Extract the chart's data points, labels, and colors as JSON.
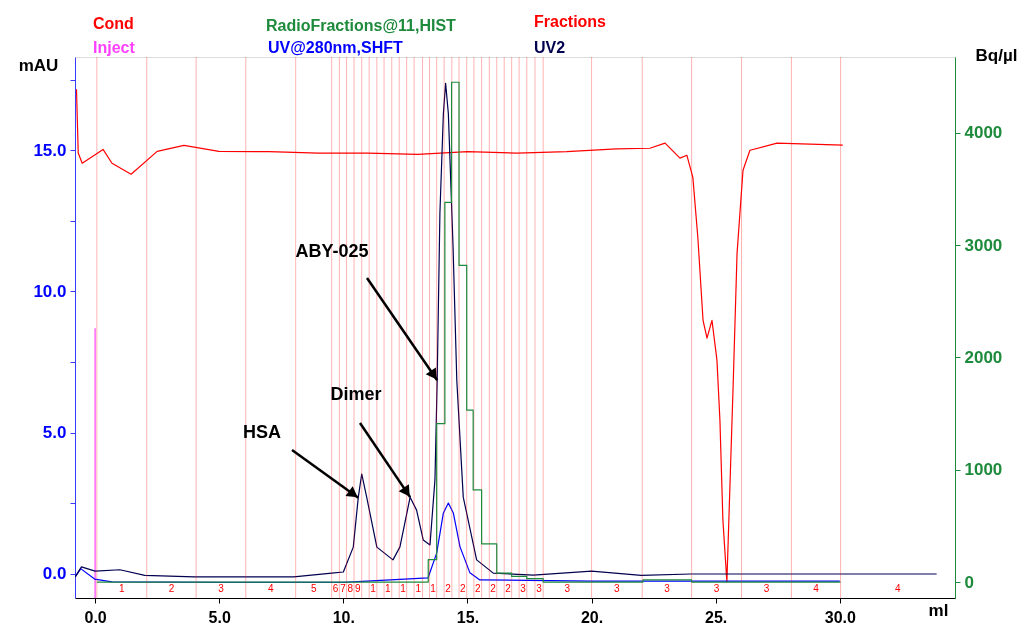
{
  "chart_data": {
    "type": "line",
    "xlabel": "ml",
    "ylabel": "mAU",
    "y2label": "Bq/µl",
    "legend": "top",
    "xlim": [
      -0.81,
      34.64
    ],
    "ylim": [
      -0.85,
      18.3
    ],
    "y2lim": [
      -142,
      4675
    ],
    "xticks": [
      {
        "value": 0,
        "label": "0.0"
      },
      {
        "value": 5,
        "label": "5.0"
      },
      {
        "value": 10,
        "label": "10."
      },
      {
        "value": 15,
        "label": "15."
      },
      {
        "value": 20,
        "label": "20."
      },
      {
        "value": 25,
        "label": "25."
      },
      {
        "value": 30,
        "label": "30.0"
      }
    ],
    "yticks": [
      {
        "value": 0,
        "label": "0.0"
      },
      {
        "value": 2.5,
        "label": null
      },
      {
        "value": 5,
        "label": "5.0"
      },
      {
        "value": 7.5,
        "label": null
      },
      {
        "value": 10,
        "label": "10.0"
      },
      {
        "value": 12.5,
        "label": null
      },
      {
        "value": 15,
        "label": "15.0"
      },
      {
        "value": 17.5,
        "label": null
      }
    ],
    "y2ticks": [
      0,
      1000,
      2000,
      3000,
      4000
    ],
    "series": [
      {
        "name": "Cond",
        "color": "#ff0000",
        "type": "line",
        "x": [
          -0.75,
          -0.68,
          -0.52,
          0.32,
          0.68,
          1.45,
          2.5,
          3.58,
          4.99,
          7,
          9,
          11,
          13,
          15,
          17,
          19,
          21,
          22.35,
          22.96,
          23.56,
          23.84,
          24.08,
          24.28,
          24.49,
          24.65,
          24.85,
          25.05,
          25.17,
          25.29,
          25.45,
          25.53,
          25.7,
          25.86,
          26.1,
          26.38,
          27.47,
          30.12
        ],
        "values": [
          17.16,
          14.9,
          14.54,
          15.03,
          14.54,
          14.15,
          14.96,
          15.17,
          14.96,
          14.95,
          14.9,
          14.9,
          14.85,
          14.95,
          14.9,
          14.95,
          15.05,
          15.07,
          15.25,
          14.72,
          14.82,
          14.04,
          11.92,
          8.98,
          8.35,
          8.98,
          7.57,
          5.45,
          1.91,
          -0.28,
          1.91,
          6.6,
          11.35,
          14.29,
          15.0,
          15.25,
          15.18
        ]
      },
      {
        "name": "Inject",
        "color": "#ff40ff",
        "type": "line",
        "x": [
          0,
          0
        ],
        "values": [
          -0.85,
          8.7
        ]
      },
      {
        "name": "RadioFractions@11,HIST",
        "color": "#1e8a3c",
        "type": "step",
        "axis": "y2",
        "x": [
          0.07,
          13.42,
          13.76,
          14.09,
          14.36,
          14.66,
          14.97,
          15.23,
          15.57,
          16.18,
          16.78,
          17.39,
          18.05,
          22.07,
          24.03,
          30.03
        ],
        "values": [
          0,
          200,
          1410,
          3380,
          4450,
          2820,
          1530,
          820,
          340,
          80,
          50,
          30,
          0,
          20,
          0,
          0
        ]
      },
      {
        "name": "UV@280nm,SHFT",
        "color": "#0000ff",
        "type": "line",
        "x": [
          -0.8,
          -0.58,
          -0.02,
          0.68,
          5,
          10,
          13.41,
          13.76,
          14.03,
          14.23,
          14.43,
          14.7,
          15.1,
          15.5,
          20,
          25,
          30
        ],
        "values": [
          -0.1,
          0.19,
          -0.18,
          -0.28,
          -0.3,
          -0.3,
          -0.14,
          0.74,
          2.16,
          2.51,
          2.16,
          0.96,
          0.04,
          -0.21,
          -0.25,
          -0.25,
          -0.25
        ]
      },
      {
        "name": "UV2",
        "color": "#000050",
        "type": "line",
        "x": [
          -0.8,
          -0.55,
          0,
          1,
          2,
          4,
          6,
          8,
          9.53,
          10.0,
          10.4,
          10.6,
          10.74,
          10.94,
          11.35,
          12.0,
          12.28,
          12.69,
          12.95,
          13.22,
          13.49,
          13.69,
          13.78,
          13.89,
          14.03,
          14.12,
          14.23,
          14.42,
          14.57,
          14.83,
          15.37,
          16.04,
          17.65,
          20,
          22,
          24,
          26,
          28,
          30,
          32,
          33.9
        ],
        "values": [
          -0.1,
          0.25,
          0.1,
          0.15,
          -0.05,
          -0.1,
          -0.1,
          -0.1,
          0.03,
          0.07,
          0.95,
          2.7,
          3.54,
          2.72,
          0.95,
          0.5,
          0.96,
          2.72,
          2.26,
          1.2,
          1.03,
          3.33,
          6.86,
          12.77,
          16.3,
          17.37,
          16.3,
          11.57,
          6.86,
          2.72,
          0.5,
          0.03,
          -0.04,
          0.1,
          -0.05,
          0.0,
          0.0,
          0.0,
          0.0,
          0.0,
          0.0
        ]
      }
    ],
    "ref_lines": [
      {
        "axis": "x",
        "value": 0.07,
        "color": "#ff0000"
      },
      {
        "axis": "x",
        "value": 2.08,
        "color": "#ff0000"
      },
      {
        "axis": "x",
        "value": 4.07,
        "color": "#ff0000"
      },
      {
        "axis": "x",
        "value": 6.07,
        "color": "#ff0000"
      },
      {
        "axis": "x",
        "value": 8.08,
        "color": "#ff0000"
      },
      {
        "axis": "x",
        "value": 9.53,
        "color": "#ff0000"
      },
      {
        "axis": "x",
        "value": 9.84,
        "color": "#ff0000"
      },
      {
        "axis": "x",
        "value": 10.13,
        "color": "#ff0000"
      },
      {
        "axis": "x",
        "value": 10.43,
        "color": "#ff0000"
      },
      {
        "axis": "x",
        "value": 10.74,
        "color": "#ff0000"
      },
      {
        "axis": "x",
        "value": 11.04,
        "color": "#ff0000"
      },
      {
        "axis": "x",
        "value": 11.35,
        "color": "#ff0000"
      },
      {
        "axis": "x",
        "value": 11.64,
        "color": "#ff0000"
      },
      {
        "axis": "x",
        "value": 11.95,
        "color": "#ff0000"
      },
      {
        "axis": "x",
        "value": 12.25,
        "color": "#ff0000"
      },
      {
        "axis": "x",
        "value": 12.55,
        "color": "#ff0000"
      },
      {
        "axis": "x",
        "value": 12.85,
        "color": "#ff0000"
      },
      {
        "axis": "x",
        "value": 13.19,
        "color": "#ff0000"
      },
      {
        "axis": "x",
        "value": 13.47,
        "color": "#ff0000"
      },
      {
        "axis": "x",
        "value": 13.76,
        "color": "#ff0000"
      },
      {
        "axis": "x",
        "value": 14.06,
        "color": "#ff0000"
      },
      {
        "axis": "x",
        "value": 14.37,
        "color": "#ff0000"
      },
      {
        "axis": "x",
        "value": 14.66,
        "color": "#ff0000"
      },
      {
        "axis": "x",
        "value": 14.97,
        "color": "#ff0000"
      },
      {
        "axis": "x",
        "value": 15.26,
        "color": "#ff0000"
      },
      {
        "axis": "x",
        "value": 15.57,
        "color": "#ff0000"
      },
      {
        "axis": "x",
        "value": 15.88,
        "color": "#ff0000"
      },
      {
        "axis": "x",
        "value": 16.18,
        "color": "#ff0000"
      },
      {
        "axis": "x",
        "value": 16.48,
        "color": "#ff0000"
      },
      {
        "axis": "x",
        "value": 16.78,
        "color": "#ff0000"
      },
      {
        "axis": "x",
        "value": 17.08,
        "color": "#ff0000"
      },
      {
        "axis": "x",
        "value": 17.39,
        "color": "#ff0000"
      },
      {
        "axis": "x",
        "value": 17.72,
        "color": "#ff0000"
      },
      {
        "axis": "x",
        "value": 18.05,
        "color": "#ff0000"
      },
      {
        "axis": "x",
        "value": 20.0,
        "color": "#ff0000"
      },
      {
        "axis": "x",
        "value": 22.04,
        "color": "#ff0000"
      },
      {
        "axis": "x",
        "value": 24.03,
        "color": "#ff0000"
      },
      {
        "axis": "x",
        "value": 26.04,
        "color": "#ff0000"
      },
      {
        "axis": "x",
        "value": 28.05,
        "color": "#ff0000"
      },
      {
        "axis": "x",
        "value": 30.03,
        "color": "#ff0000"
      }
    ],
    "annotations": [
      {
        "text": "HSA",
        "x": 10.6,
        "y": 2.7
      },
      {
        "text": "Dimer",
        "x": 12.69,
        "y": 2.72
      },
      {
        "text": "ABY-025",
        "x": 13.78,
        "y": 6.86
      },
      "Fractions",
      "1",
      "2",
      "3",
      "4",
      "5",
      "6",
      "7",
      "8",
      "9",
      "1",
      "1",
      "1",
      "1",
      "1",
      "2",
      "2",
      "2",
      "2",
      "2",
      "3",
      "3",
      "3",
      "3",
      "3",
      "3",
      "3",
      "4",
      "4"
    ]
  }
}
